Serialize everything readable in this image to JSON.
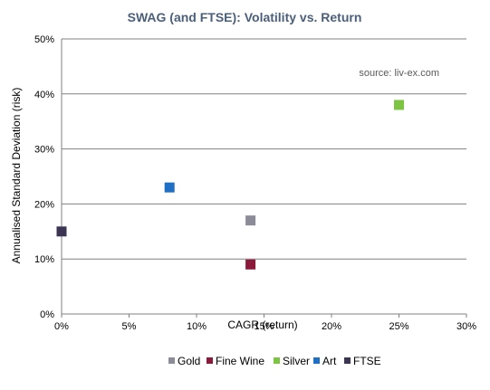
{
  "chart_data": {
    "type": "scatter",
    "title": "SWAG (and FTSE): Volatility vs. Return",
    "xlabel": "CAGR (return)",
    "ylabel": "Annualised Standard Deviation (risk)",
    "annotation": "source: liv-ex.com",
    "xlim": [
      0,
      30
    ],
    "ylim": [
      0,
      50
    ],
    "x_ticks": [
      0,
      5,
      10,
      15,
      20,
      25,
      30
    ],
    "y_ticks": [
      0,
      10,
      20,
      30,
      40,
      50
    ],
    "x_tick_labels": [
      "0%",
      "5%",
      "10%",
      "15%",
      "20%",
      "25%",
      "30%"
    ],
    "y_tick_labels": [
      "0%",
      "10%",
      "20%",
      "30%",
      "40%",
      "50%"
    ],
    "grid": "horizontal",
    "legend_position": "bottom",
    "series": [
      {
        "name": "Gold",
        "color": "#8c8c99",
        "points": [
          {
            "x": 14,
            "y": 17
          }
        ]
      },
      {
        "name": "Fine Wine",
        "color": "#8b1a3a",
        "points": [
          {
            "x": 14,
            "y": 9
          }
        ]
      },
      {
        "name": "Silver",
        "color": "#7dc443",
        "points": [
          {
            "x": 25,
            "y": 38
          }
        ]
      },
      {
        "name": "Art",
        "color": "#1f6fc5",
        "points": [
          {
            "x": 8,
            "y": 23
          }
        ]
      },
      {
        "name": "FTSE",
        "color": "#3b3452",
        "points": [
          {
            "x": 0,
            "y": 15
          }
        ]
      }
    ]
  }
}
